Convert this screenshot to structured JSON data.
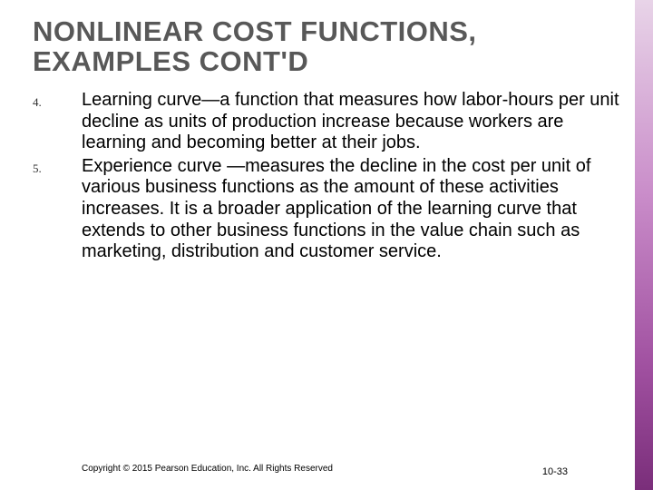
{
  "title": "NONLINEAR COST FUNCTIONS, EXAMPLES CONT'D",
  "title_color": "#585858",
  "title_fontsize": 31,
  "items": [
    {
      "number": "4.",
      "text": "Learning curve—a function that measures how labor-hours per unit decline as units of production increase because workers are learning and becoming better at their jobs."
    },
    {
      "number": "5.",
      "text": "Experience curve —measures the decline in the cost per unit of various business functions as the amount of these activities increases.  It is a broader application of the learning curve that extends to other business functions in the value chain such as marketing, distribution and customer service."
    }
  ],
  "body_fontsize": 20,
  "body_color": "#000000",
  "copyright": "Copyright © 2015 Pearson Education, Inc. All Rights Reserved",
  "page_number": "10-33",
  "background_color": "#ffffff",
  "gradient_colors": [
    "#e8d4e8",
    "#c98cc9",
    "#a050a0",
    "#7a2e7a"
  ]
}
